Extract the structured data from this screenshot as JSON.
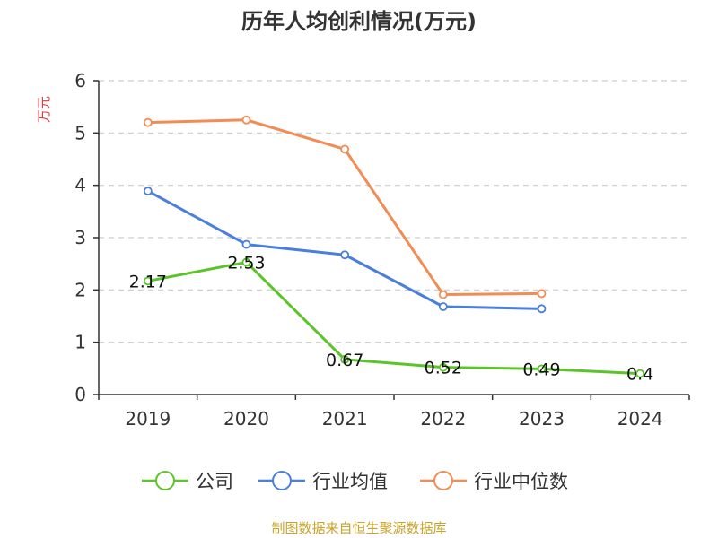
{
  "chart_data": {
    "type": "line",
    "title": "历年人均创利情况(万元)",
    "ylabel": "万元",
    "xlabel": "",
    "ylim": [
      0,
      6
    ],
    "yticks": [
      0,
      1,
      2,
      3,
      4,
      5,
      6
    ],
    "categories": [
      "2019",
      "2020",
      "2021",
      "2022",
      "2023",
      "2024"
    ],
    "grid": true,
    "legend_position": "bottom",
    "series": [
      {
        "name": "公司",
        "color": "#5bc42a",
        "values": [
          2.17,
          2.53,
          0.67,
          0.52,
          0.49,
          0.4
        ],
        "labels": [
          "2.17",
          "2.53",
          "0.67",
          "0.52",
          "0.49",
          "0.4"
        ]
      },
      {
        "name": "行业均值",
        "color": "#4a7fdc",
        "values": [
          3.89,
          2.87,
          2.67,
          1.68,
          1.64,
          null
        ]
      },
      {
        "name": "行业中位数",
        "color": "#f28c55",
        "values": [
          5.2,
          5.25,
          4.69,
          1.91,
          1.93,
          null
        ]
      }
    ]
  },
  "source": "制图数据来自恒生聚源数据库"
}
